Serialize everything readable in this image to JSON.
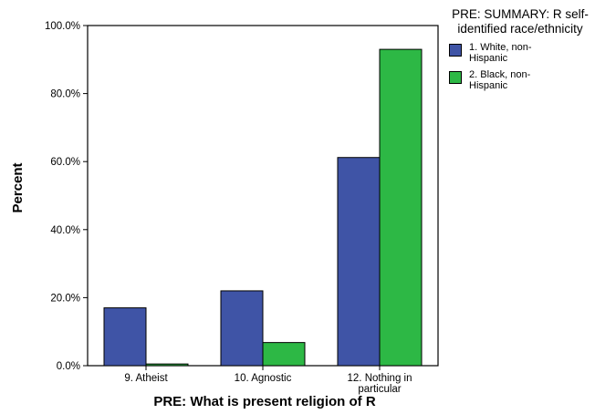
{
  "chart_data": {
    "type": "bar",
    "categories": [
      "9. Atheist",
      "10. Agnostic",
      "12. Nothing in particular"
    ],
    "series": [
      {
        "name": "1. White, non-Hispanic",
        "values": [
          17.0,
          22.0,
          61.2
        ],
        "color": "#3f54a6"
      },
      {
        "name": "2. Black, non-Hispanic",
        "values": [
          0.5,
          6.8,
          93.0
        ],
        "color": "#2db845"
      }
    ],
    "xlabel": "PRE: What is present religion of R",
    "ylabel": "Percent",
    "ylim": [
      0,
      100
    ],
    "yticks": [
      0,
      20,
      40,
      60,
      80,
      100
    ],
    "ytick_labels": [
      "0.0%",
      "20.0%",
      "40.0%",
      "60.0%",
      "80.0%",
      "100.0%"
    ],
    "grid": false,
    "legend_position": "right",
    "legend_title": "PRE: SUMMARY: R self-identified race/ethnicity"
  }
}
